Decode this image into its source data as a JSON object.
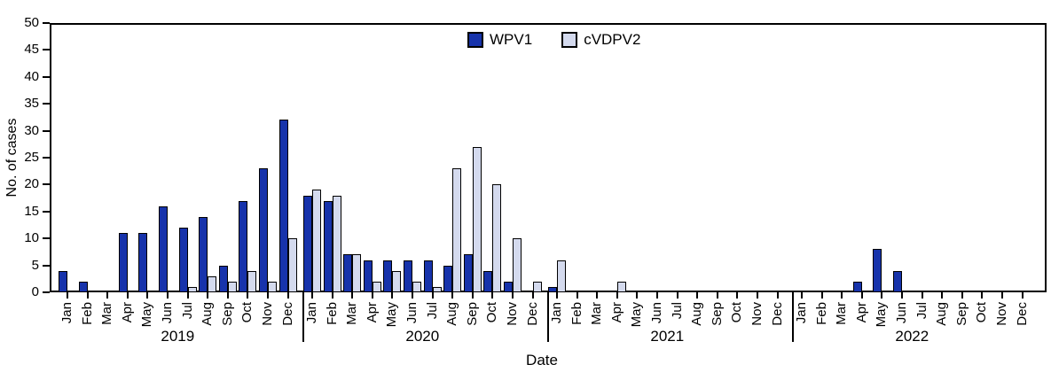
{
  "chart_data": {
    "type": "bar",
    "title": "",
    "ylabel": "No. of cases",
    "xlabel": "Date",
    "ylim": [
      0,
      50
    ],
    "yticks": [
      0,
      5,
      10,
      15,
      20,
      25,
      30,
      35,
      40,
      45,
      50
    ],
    "month_labels": [
      "Jan",
      "Feb",
      "Mar",
      "Apr",
      "May",
      "Jun",
      "Jul",
      "Aug",
      "Sep",
      "Oct",
      "Nov",
      "Dec"
    ],
    "years": [
      "2019",
      "2020",
      "2021",
      "2022"
    ],
    "grid": false,
    "legend_position": "top-center",
    "axis_color": "#000000",
    "series": [
      {
        "name": "WPV1",
        "color": "#1733ab",
        "values": [
          4,
          2,
          0,
          11,
          11,
          16,
          12,
          14,
          5,
          17,
          23,
          32,
          18,
          17,
          7,
          6,
          6,
          6,
          6,
          5,
          7,
          4,
          2,
          0,
          1,
          0,
          0,
          0,
          0,
          0,
          0,
          0,
          0,
          0,
          0,
          0,
          0,
          0,
          0,
          2,
          8,
          4,
          0,
          0,
          0,
          0,
          0,
          0
        ]
      },
      {
        "name": "cVDPV2",
        "color": "#d4daee",
        "values": [
          0,
          0,
          0,
          0,
          0,
          0,
          1,
          3,
          2,
          4,
          2,
          10,
          19,
          18,
          7,
          2,
          4,
          2,
          1,
          23,
          27,
          20,
          10,
          2,
          6,
          0,
          0,
          2,
          0,
          0,
          0,
          0,
          0,
          0,
          0,
          0,
          0,
          0,
          0,
          0,
          0,
          0,
          0,
          0,
          0,
          0,
          0,
          0
        ]
      }
    ]
  }
}
